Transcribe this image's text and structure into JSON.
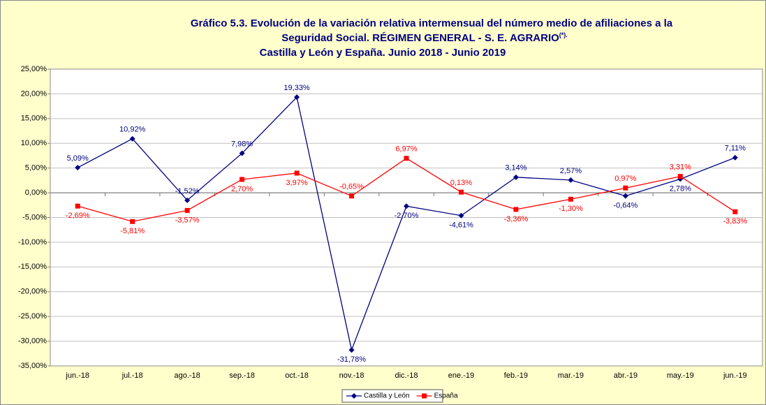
{
  "chart_data": {
    "type": "line",
    "title": [
      "Gráfico 5.3. Evolución de la variación relativa intermensual del número medio de afiliaciones a la",
      "Seguridad Social. RÉGIMEN GENERAL - S. E. AGRARIO",
      "Castilla y León y España. Junio 2018 - Junio 2019"
    ],
    "title_note": "(*).",
    "categories": [
      "jun.-18",
      "jul.-18",
      "ago.-18",
      "sep.-18",
      "oct.-18",
      "nov.-18",
      "dic.-18",
      "ene.-19",
      "feb.-19",
      "mar.-19",
      "abr.-19",
      "may.-19",
      "jun.-19"
    ],
    "series": [
      {
        "name": "Castilla y León",
        "color": "#000080",
        "marker": "diamond",
        "values": [
          5.09,
          10.92,
          -1.52,
          7.98,
          19.33,
          -31.78,
          -2.7,
          -4.61,
          3.14,
          2.57,
          -0.64,
          2.78,
          7.11
        ],
        "value_labels": [
          "5,09%",
          "10,92%",
          "-1,52%",
          "7,98%",
          "19,33%",
          "-31,78%",
          "-2,70%",
          "-4,61%",
          "3,14%",
          "2,57%",
          "-0,64%",
          "2,78%",
          "7,11%"
        ]
      },
      {
        "name": "España",
        "color": "#ff0000",
        "marker": "square",
        "values": [
          -2.69,
          -5.81,
          -3.57,
          2.7,
          3.97,
          -0.65,
          6.97,
          0.13,
          -3.36,
          -1.3,
          0.97,
          3.31,
          -3.83
        ],
        "value_labels": [
          "-2,69%",
          "-5,81%",
          "-3,57%",
          "2,70%",
          "3,97%",
          "-0,65%",
          "6,97%",
          "0,13%",
          "-3,36%",
          "-1,30%",
          "0,97%",
          "3,31%",
          "-3,83%"
        ]
      }
    ],
    "ylim": [
      -35,
      25
    ],
    "yticks": [
      {
        "value": 25,
        "label": "25,00%"
      },
      {
        "value": 20,
        "label": "20,00%"
      },
      {
        "value": 15,
        "label": "15,00%"
      },
      {
        "value": 10,
        "label": "10,00%"
      },
      {
        "value": 5,
        "label": "5,00%"
      },
      {
        "value": 0,
        "label": "0,00%"
      },
      {
        "value": -5,
        "label": "-5,00%"
      },
      {
        "value": -10,
        "label": "-10,00%"
      },
      {
        "value": -15,
        "label": "-15,00%"
      },
      {
        "value": -20,
        "label": "-20,00%"
      },
      {
        "value": -25,
        "label": "-25,00%"
      },
      {
        "value": -30,
        "label": "-30,00%"
      },
      {
        "value": -35,
        "label": "-35,00%"
      }
    ],
    "grid": true,
    "legend": "bottom"
  }
}
